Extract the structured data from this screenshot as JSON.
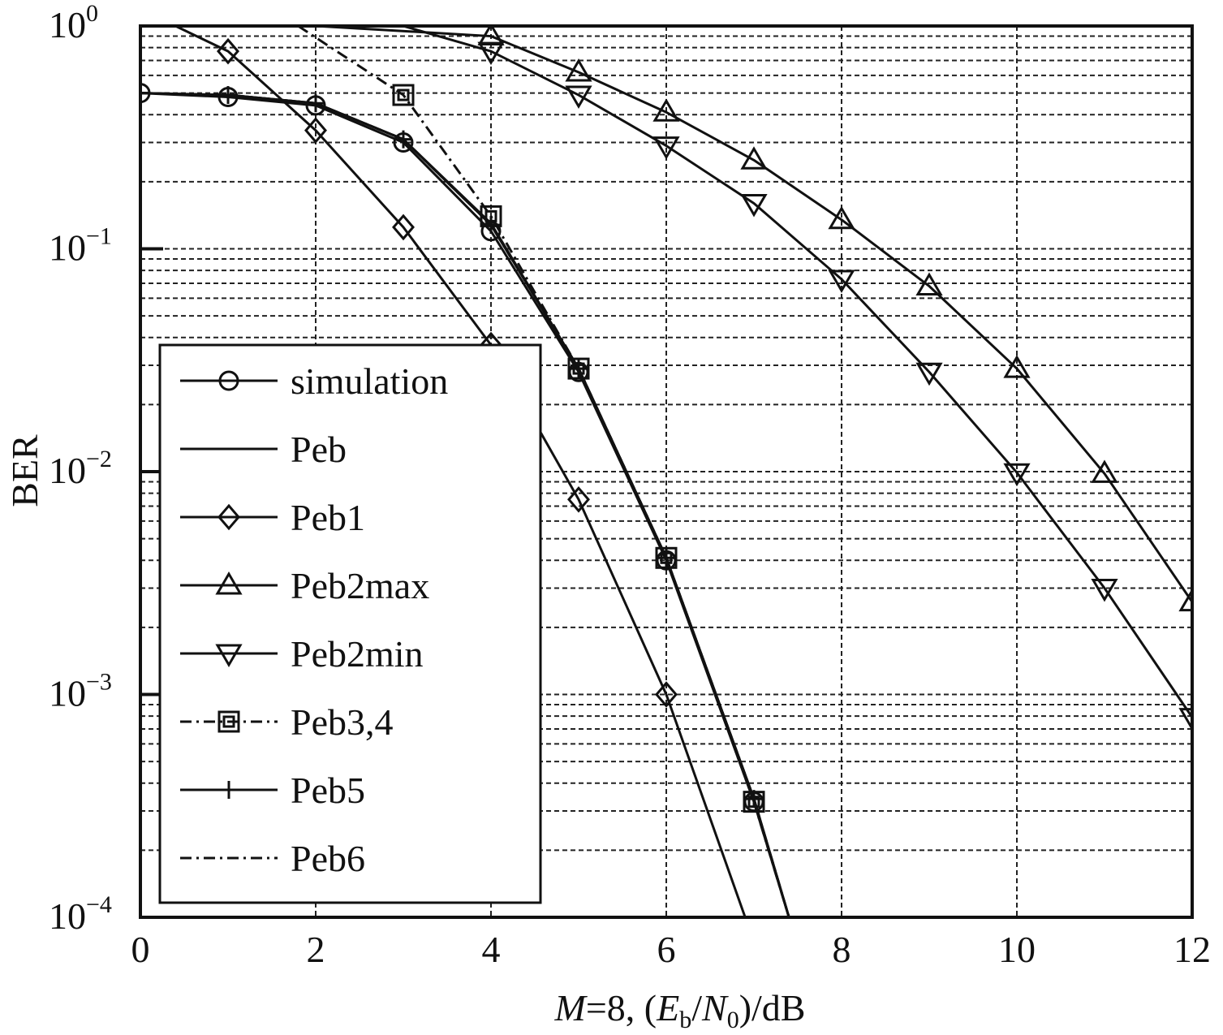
{
  "chart_data": {
    "type": "line",
    "title": "",
    "xlabel_parts": {
      "m": "M",
      "eq": "=8, (",
      "eb": "E",
      "eb_sub": "b",
      "slash": "/",
      "n0": "N",
      "n0_sub": "0",
      "rest": ")/dB"
    },
    "ylabel": "BER",
    "y_scale": "log",
    "xlim": [
      0,
      12
    ],
    "ylim": [
      0.0001,
      1
    ],
    "x_ticks": [
      "0",
      "2",
      "4",
      "6",
      "8",
      "10",
      "12"
    ],
    "y_ticks": [
      {
        "base": "10",
        "exp": "0"
      },
      {
        "base": "10",
        "exp": "−1"
      },
      {
        "base": "10",
        "exp": "−2"
      },
      {
        "base": "10",
        "exp": "−3"
      },
      {
        "base": "10",
        "exp": "−4"
      }
    ],
    "grid": true,
    "legend_position": "lower-left",
    "series": [
      {
        "name": "simulation",
        "marker": "circle",
        "dash": "solid",
        "points": [
          [
            0,
            0.5
          ],
          [
            1,
            0.48
          ],
          [
            2,
            0.44
          ],
          [
            3,
            0.3
          ],
          [
            4,
            0.12
          ],
          [
            5,
            0.028
          ],
          [
            6,
            0.004
          ],
          [
            7,
            0.00033
          ],
          [
            7.4,
            0.0001
          ]
        ]
      },
      {
        "name": "Peb",
        "marker": "none",
        "dash": "solid",
        "points": [
          [
            0,
            0.5
          ],
          [
            1,
            0.49
          ],
          [
            2,
            0.45
          ],
          [
            3,
            0.31
          ],
          [
            4,
            0.13
          ],
          [
            5,
            0.029
          ],
          [
            6,
            0.0041
          ],
          [
            7,
            0.00034
          ],
          [
            7.4,
            0.0001
          ]
        ]
      },
      {
        "name": "Peb1",
        "marker": "diamond",
        "dash": "solid",
        "points": [
          [
            0.4,
            1
          ],
          [
            1,
            0.77
          ],
          [
            2,
            0.34
          ],
          [
            3,
            0.125
          ],
          [
            4,
            0.037
          ],
          [
            5,
            0.0075
          ],
          [
            6,
            0.001
          ],
          [
            6.9,
            0.0001
          ]
        ]
      },
      {
        "name": "Peb2max",
        "marker": "triangle-up",
        "dash": "solid",
        "points": [
          [
            2,
            1
          ],
          [
            4,
            0.9
          ],
          [
            5,
            0.62
          ],
          [
            6,
            0.41
          ],
          [
            7,
            0.25
          ],
          [
            8,
            0.135
          ],
          [
            9,
            0.068
          ],
          [
            10,
            0.029
          ],
          [
            11,
            0.0098
          ],
          [
            12,
            0.0026
          ]
        ]
      },
      {
        "name": "Peb2min",
        "marker": "triangle-down",
        "dash": "solid",
        "points": [
          [
            3,
            1
          ],
          [
            4,
            0.77
          ],
          [
            5,
            0.49
          ],
          [
            6,
            0.29
          ],
          [
            7,
            0.16
          ],
          [
            8,
            0.073
          ],
          [
            9,
            0.028
          ],
          [
            10,
            0.0099
          ],
          [
            11,
            0.003
          ],
          [
            12,
            0.00079
          ]
        ]
      },
      {
        "name": "Peb3,4",
        "marker": "square",
        "dash": "dashdot",
        "points": [
          [
            1.8,
            1
          ],
          [
            3,
            0.49
          ],
          [
            4,
            0.14
          ],
          [
            5,
            0.029
          ],
          [
            6,
            0.0041
          ],
          [
            7,
            0.00033
          ],
          [
            7.4,
            0.0001
          ]
        ]
      },
      {
        "name": "Peb5",
        "marker": "plus",
        "dash": "solid",
        "points": [
          [
            0,
            0.5
          ],
          [
            1,
            0.49
          ],
          [
            2,
            0.45
          ],
          [
            3,
            0.31
          ],
          [
            4,
            0.128
          ],
          [
            5,
            0.029
          ],
          [
            6,
            0.0041
          ],
          [
            7,
            0.00034
          ],
          [
            7.4,
            0.0001
          ]
        ]
      },
      {
        "name": "Peb6",
        "marker": "none",
        "dash": "dashdot",
        "points": [
          [
            0,
            0.5
          ],
          [
            1,
            0.49
          ],
          [
            2,
            0.45
          ],
          [
            3,
            0.31
          ],
          [
            4,
            0.128
          ],
          [
            5,
            0.029
          ],
          [
            6,
            0.0041
          ],
          [
            7,
            0.00034
          ],
          [
            7.4,
            0.0001
          ]
        ]
      }
    ]
  }
}
